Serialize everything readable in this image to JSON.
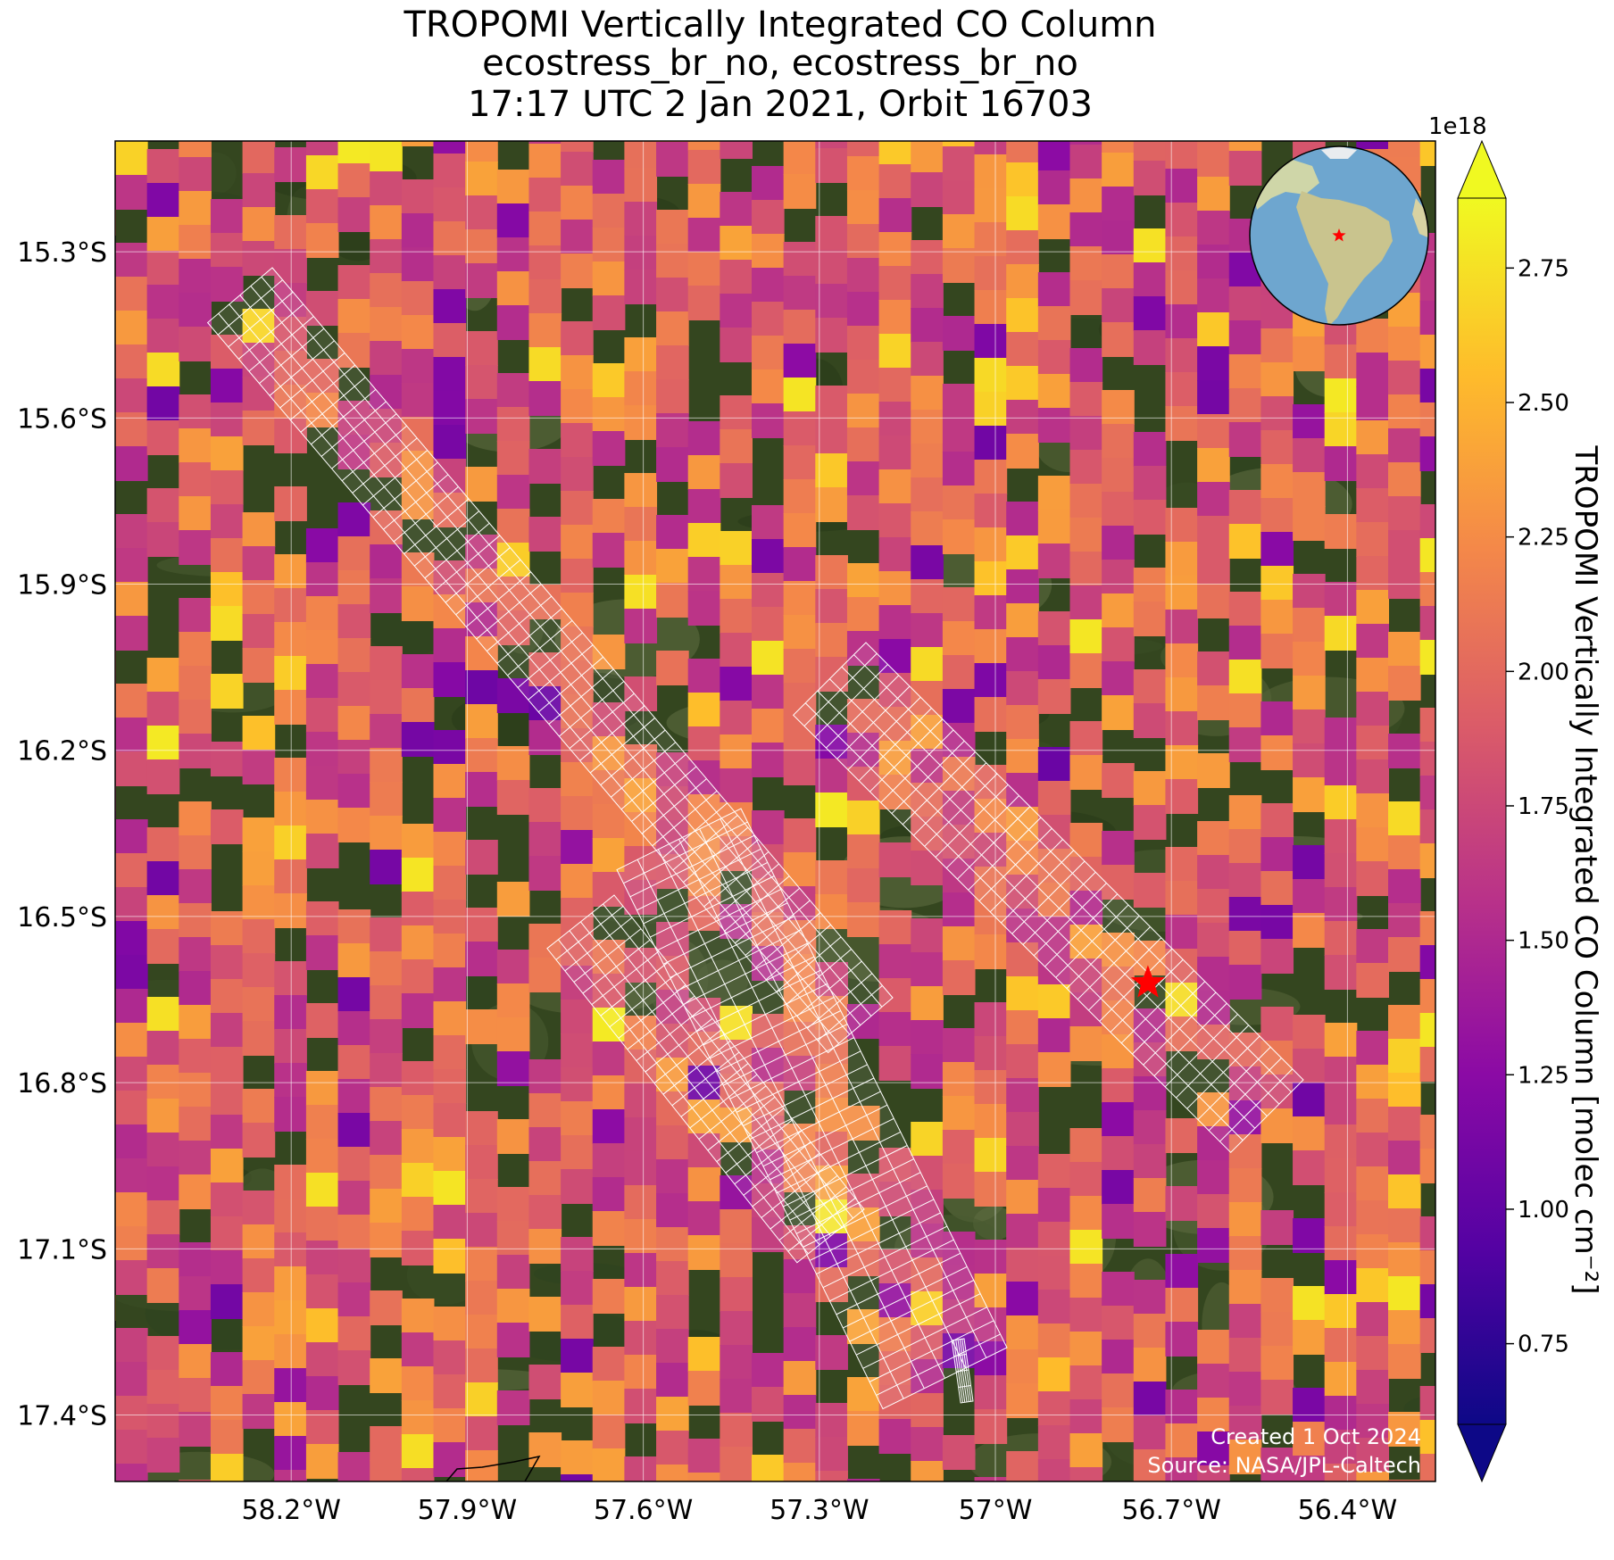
{
  "title": {
    "line1": "TROPOMI Vertically Integrated CO Column",
    "line2": "ecostress_br_no, ecostress_br_no",
    "line3": "17:17 UTC 2 Jan 2021, Orbit 16703"
  },
  "colorbar": {
    "label": "TROPOMI Vertically Integrated CO Column [molec cm⁻²]",
    "exponent": "1e18",
    "ticks": [
      "0.75",
      "1.00",
      "1.25",
      "1.50",
      "1.75",
      "2.00",
      "2.25",
      "2.50",
      "2.75"
    ],
    "tick_values": [
      0.75,
      1.0,
      1.25,
      1.5,
      1.75,
      2.0,
      2.25,
      2.5,
      2.75
    ],
    "vmin": 0.6,
    "vmax": 2.88,
    "colormap": "plasma",
    "extend": "both"
  },
  "axes": {
    "lon_ticks": [
      "58.2°W",
      "57.9°W",
      "57.6°W",
      "57.3°W",
      "57°W",
      "56.7°W",
      "56.4°W"
    ],
    "lon_values": [
      -58.2,
      -57.9,
      -57.6,
      -57.3,
      -57.0,
      -56.7,
      -56.4
    ],
    "lat_ticks": [
      "15.3°S",
      "15.6°S",
      "15.9°S",
      "16.2°S",
      "16.5°S",
      "16.8°S",
      "17.1°S",
      "17.4°S"
    ],
    "lat_values": [
      -15.3,
      -15.6,
      -15.9,
      -16.2,
      -16.5,
      -16.8,
      -17.1,
      -17.4
    ],
    "lon_range": [
      -58.5,
      -56.25
    ],
    "lat_range": [
      -17.52,
      -15.1
    ],
    "grid": true
  },
  "target": {
    "name": "ecostress_br_no",
    "lon": -56.74,
    "lat": -16.62,
    "marker": "red-star"
  },
  "inset": {
    "type": "globe",
    "marker": "red-star"
  },
  "credits": {
    "created": "Created 1 Oct 2024",
    "source": "Source: NASA/JPL-Caltech"
  },
  "colors": {
    "grid": "#ffffff",
    "target": "#ff0000",
    "footprint": "#ffffff",
    "land_dark": "#2d3d1c",
    "ocean": "#6ea6cf"
  }
}
